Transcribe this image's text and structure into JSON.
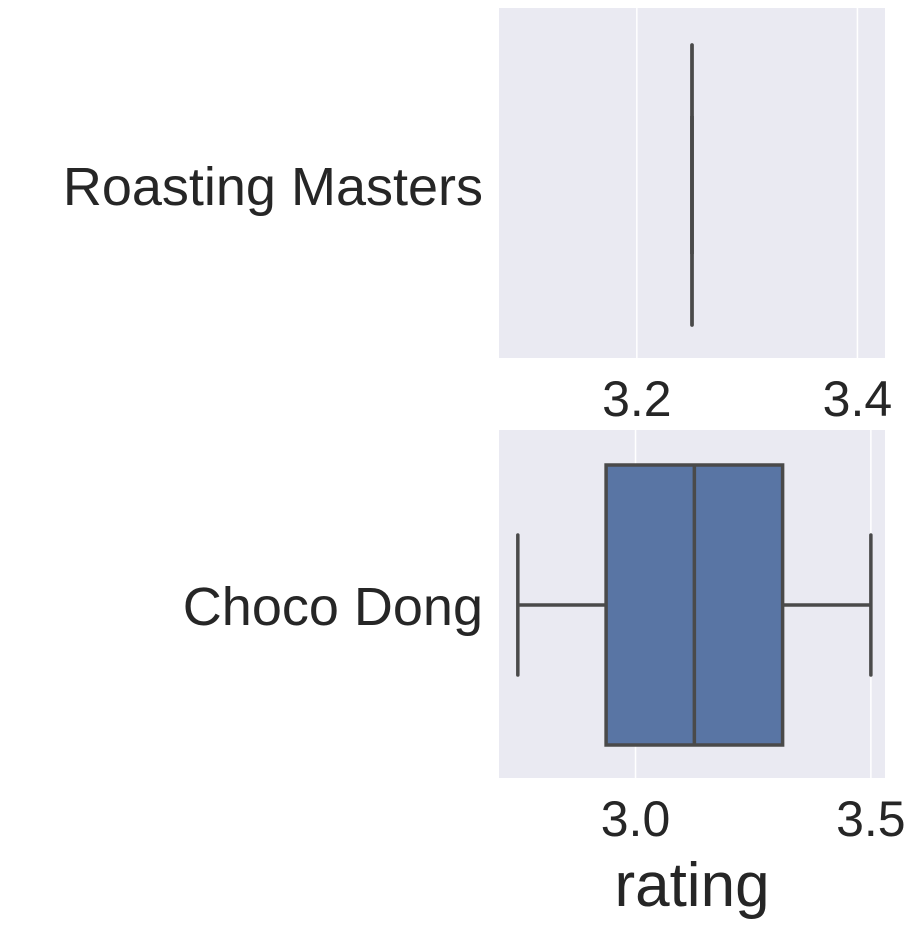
{
  "chart_data": [
    {
      "type": "boxplot",
      "category": "Roasting Masters",
      "xlabel": "",
      "xlim": [
        3.075,
        3.425
      ],
      "xticks": [
        3.2,
        3.4
      ],
      "xtick_labels": [
        "3.2",
        "3.4"
      ],
      "box": {
        "min": 3.25,
        "q1": 3.25,
        "median": 3.25,
        "q3": 3.25,
        "max": 3.25
      },
      "grid": true,
      "background": "#eaeaf2",
      "box_color": "#5975a4",
      "line_color": "#4a4a4a"
    },
    {
      "type": "boxplot",
      "category": "Choco Dong",
      "xlabel": "rating",
      "xlim": [
        2.71,
        3.53
      ],
      "xticks": [
        3.0,
        3.5
      ],
      "xtick_labels": [
        "3.0",
        "3.5"
      ],
      "box": {
        "min": 2.75,
        "q1": 2.9375,
        "median": 3.125,
        "q3": 3.3125,
        "max": 3.5
      },
      "grid": true,
      "background": "#eaeaf2",
      "box_color": "#5975a4",
      "line_color": "#4a4a4a"
    }
  ]
}
